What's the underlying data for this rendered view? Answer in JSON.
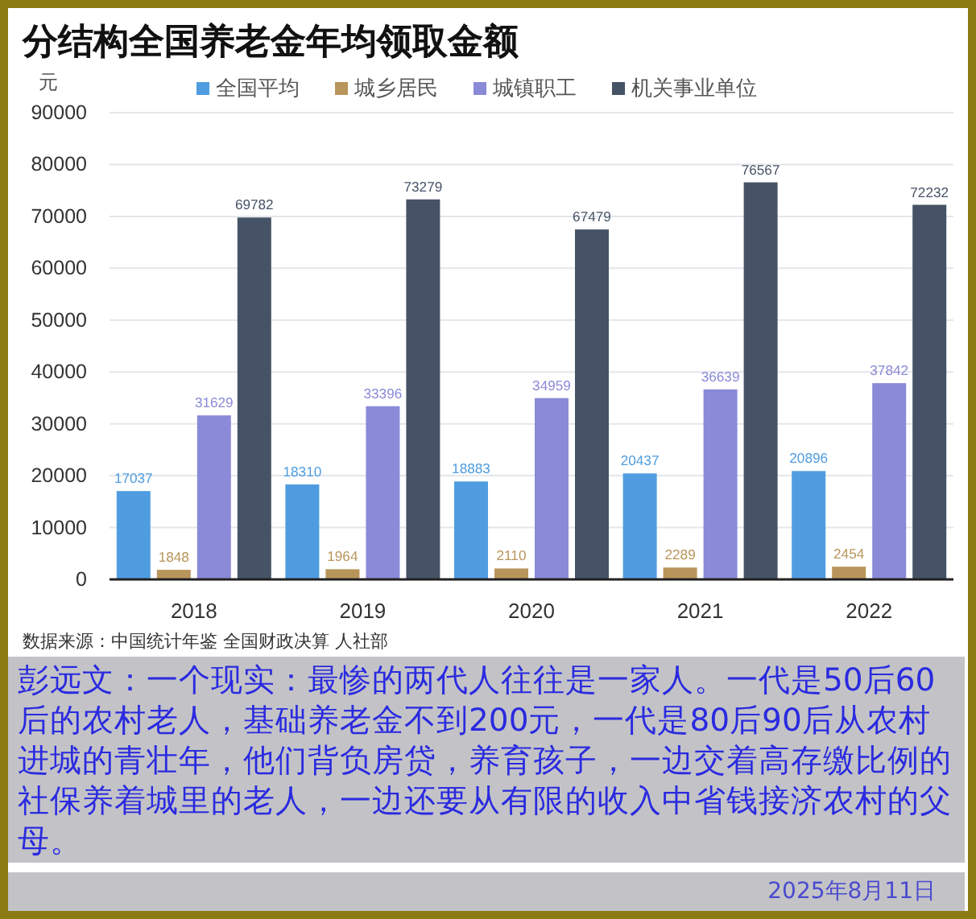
{
  "chart_data": {
    "type": "bar",
    "title": "分结构全国养老金年均领取金额",
    "ylabel": "元",
    "categories": [
      "2018",
      "2019",
      "2020",
      "2021",
      "2022"
    ],
    "series": [
      {
        "name": "全国平均",
        "color": "#4f9de0",
        "values": [
          17037,
          18310,
          18883,
          20437,
          20896
        ]
      },
      {
        "name": "城乡居民",
        "color": "#b8955a",
        "values": [
          1848,
          1964,
          2110,
          2289,
          2454
        ]
      },
      {
        "name": "城镇职工",
        "color": "#8a8ad8",
        "values": [
          31629,
          33396,
          34959,
          36639,
          37842
        ]
      },
      {
        "name": "机关事业单位",
        "color": "#465366",
        "values": [
          69782,
          73279,
          67479,
          76567,
          72232
        ]
      }
    ],
    "ylim": [
      0,
      90000
    ],
    "yticks": [
      0,
      10000,
      20000,
      30000,
      40000,
      50000,
      60000,
      70000,
      80000,
      90000
    ],
    "grid": "y",
    "legend": "top",
    "data_labels": true,
    "annotations": [
      "数据来源：中国统计年鉴 全国财政决算 人社部",
      "彭远文：一个现实：最惨的两代人往往是一家人。一代是50后60后的农村老人，基础养老金不到200元，一代是80后90后从农村进城的青壮年，他们背负房贷，养育孩子，一边交着高存缴比例的社保养着城里的老人，一边还要从有限的收入中省钱接济农村的父母。",
      "2025年8月11日"
    ]
  }
}
